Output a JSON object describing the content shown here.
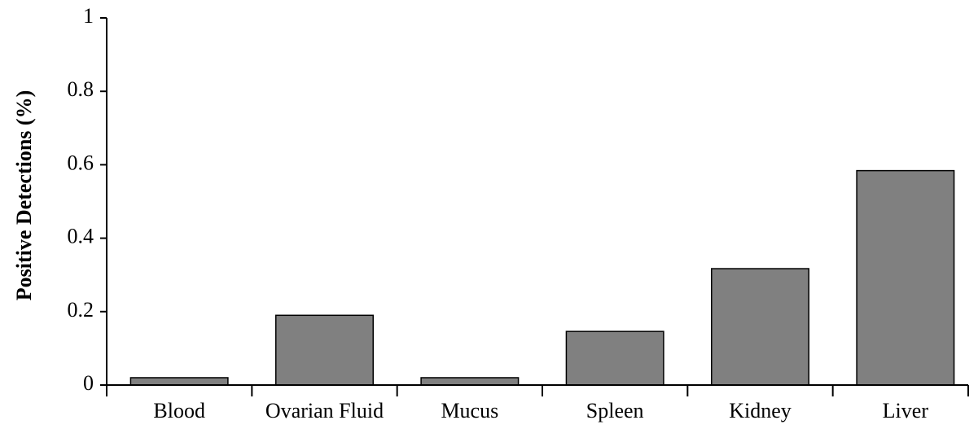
{
  "chart_data": {
    "type": "bar",
    "y_label": "Positive Detections (%)",
    "categories": [
      "Blood",
      "Ovarian Fluid",
      "Mucus",
      "Spleen",
      "Kidney",
      "Liver"
    ],
    "values": [
      0.02,
      0.19,
      0.02,
      0.146,
      0.317,
      0.584
    ],
    "color": "#808080",
    "ylim": [
      0,
      1
    ],
    "yticks": [
      0,
      0.2,
      0.4,
      0.6,
      0.8,
      1
    ],
    "grid": false
  }
}
